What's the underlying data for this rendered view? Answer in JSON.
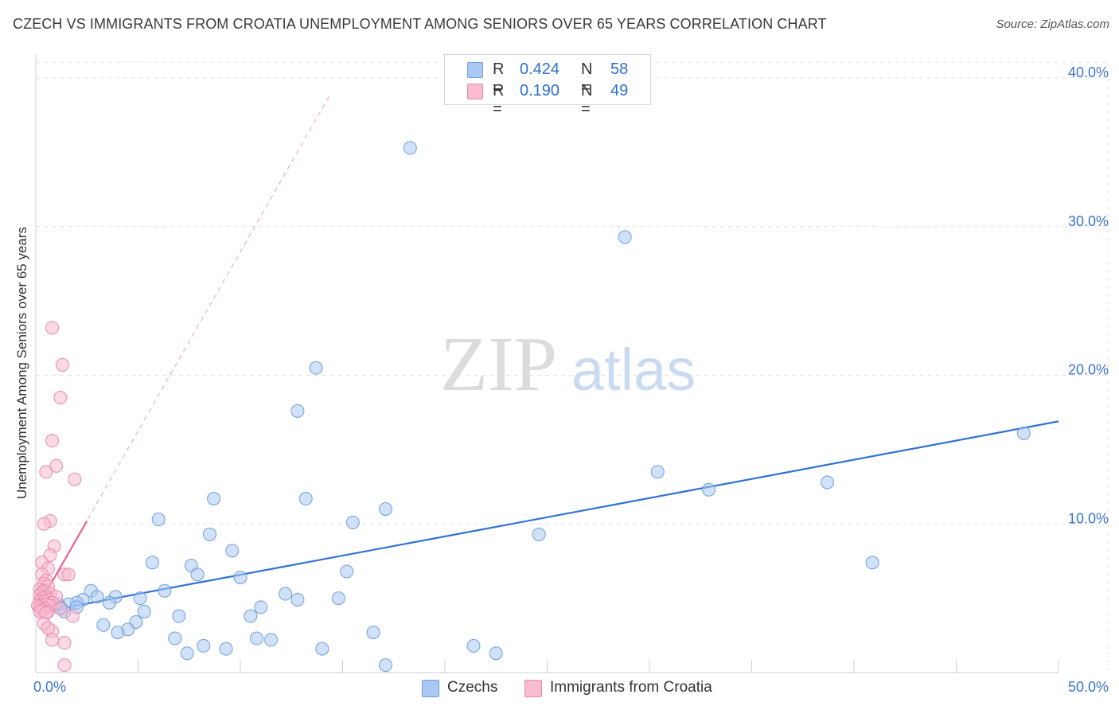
{
  "title": "CZECH VS IMMIGRANTS FROM CROATIA UNEMPLOYMENT AMONG SENIORS OVER 65 YEARS CORRELATION CHART",
  "source": "Source: ZipAtlas.com",
  "watermark": {
    "zip": "ZIP",
    "atlas": "atlas"
  },
  "legend_top": [
    {
      "r_label": "R =",
      "r_value": "0.424",
      "n_label": "N =",
      "n_value": "58",
      "color": "#aac9f2",
      "border": "#6f9fdd"
    },
    {
      "r_label": "R =",
      "r_value": "0.190",
      "n_label": "N =",
      "n_value": "49",
      "color": "#f7bcd0",
      "border": "#e88aab"
    }
  ],
  "legend_bottom": [
    {
      "label": "Czechs",
      "color": "#aac9f2",
      "border": "#6f9fdd"
    },
    {
      "label": "Immigrants from Croatia",
      "color": "#f7bcd0",
      "border": "#e88aab"
    }
  ],
  "chart_data": {
    "type": "scatter",
    "title": "CZECH VS IMMIGRANTS FROM CROATIA UNEMPLOYMENT AMONG SENIORS OVER 65 YEARS CORRELATION CHART",
    "xlabel": "",
    "ylabel": "Unemployment Among Seniors over 65 years",
    "xlim": [
      0,
      50
    ],
    "ylim": [
      0,
      40
    ],
    "x_tick_labels": [
      "0.0%",
      "50.0%"
    ],
    "y_ticks": [
      10,
      20,
      30,
      40
    ],
    "y_tick_labels": [
      "10.0%",
      "20.0%",
      "30.0%",
      "40.0%"
    ],
    "grid": true,
    "series": [
      {
        "name": "Czechs",
        "color": "#aac9f2",
        "border": "#6f9fdd",
        "trend": {
          "x": [
            0,
            50
          ],
          "y": [
            4.0,
            16.9
          ],
          "color": "#2f72d4",
          "dashed": false
        },
        "points": [
          [
            18.3,
            35.3
          ],
          [
            28.8,
            29.3
          ],
          [
            13.7,
            20.5
          ],
          [
            12.8,
            17.6
          ],
          [
            48.3,
            16.1
          ],
          [
            30.4,
            13.5
          ],
          [
            38.7,
            12.8
          ],
          [
            32.9,
            12.3
          ],
          [
            8.7,
            11.7
          ],
          [
            13.2,
            11.7
          ],
          [
            17.1,
            11.0
          ],
          [
            6.0,
            10.3
          ],
          [
            15.5,
            10.1
          ],
          [
            8.5,
            9.3
          ],
          [
            24.6,
            9.3
          ],
          [
            9.6,
            8.2
          ],
          [
            40.9,
            7.4
          ],
          [
            5.7,
            7.4
          ],
          [
            7.6,
            7.2
          ],
          [
            15.2,
            6.8
          ],
          [
            7.9,
            6.6
          ],
          [
            10.0,
            6.4
          ],
          [
            6.3,
            5.5
          ],
          [
            2.7,
            5.5
          ],
          [
            12.2,
            5.3
          ],
          [
            3.0,
            5.1
          ],
          [
            3.9,
            5.1
          ],
          [
            5.1,
            5.0
          ],
          [
            2.3,
            4.9
          ],
          [
            12.8,
            4.9
          ],
          [
            14.8,
            5.0
          ],
          [
            2.0,
            4.7
          ],
          [
            3.6,
            4.7
          ],
          [
            1.6,
            4.6
          ],
          [
            1.1,
            4.6
          ],
          [
            1.2,
            4.4
          ],
          [
            2.0,
            4.4
          ],
          [
            11.0,
            4.4
          ],
          [
            0.5,
            4.3
          ],
          [
            1.4,
            4.1
          ],
          [
            5.3,
            4.1
          ],
          [
            7.0,
            3.8
          ],
          [
            10.5,
            3.8
          ],
          [
            3.3,
            3.2
          ],
          [
            4.9,
            3.4
          ],
          [
            4.5,
            2.9
          ],
          [
            4.0,
            2.7
          ],
          [
            16.5,
            2.7
          ],
          [
            6.8,
            2.3
          ],
          [
            10.8,
            2.3
          ],
          [
            11.5,
            2.2
          ],
          [
            8.2,
            1.8
          ],
          [
            9.3,
            1.6
          ],
          [
            14.0,
            1.6
          ],
          [
            21.4,
            1.8
          ],
          [
            7.4,
            1.3
          ],
          [
            22.5,
            1.3
          ],
          [
            17.1,
            0.5
          ]
        ]
      },
      {
        "name": "Immigrants from Croatia",
        "color": "#f7bcd0",
        "border": "#e88aab",
        "trend": {
          "x": [
            0,
            2.5
          ],
          "y": [
            4.2,
            10.2
          ],
          "color": "#e8628f",
          "dashed": false
        },
        "trend_extended": {
          "x": [
            0,
            19
          ],
          "y": [
            4.2,
            50
          ],
          "color": "#eab1c4",
          "dashed": true
        },
        "points": [
          [
            0.8,
            23.2
          ],
          [
            1.3,
            20.7
          ],
          [
            1.2,
            18.5
          ],
          [
            0.8,
            15.6
          ],
          [
            1.0,
            13.9
          ],
          [
            0.5,
            13.5
          ],
          [
            1.9,
            13.0
          ],
          [
            0.7,
            10.2
          ],
          [
            0.4,
            10.0
          ],
          [
            0.9,
            8.5
          ],
          [
            0.7,
            7.9
          ],
          [
            0.3,
            7.4
          ],
          [
            0.6,
            7.0
          ],
          [
            1.4,
            6.6
          ],
          [
            1.6,
            6.6
          ],
          [
            0.3,
            6.6
          ],
          [
            0.5,
            6.2
          ],
          [
            0.4,
            6.0
          ],
          [
            0.6,
            5.8
          ],
          [
            0.2,
            5.6
          ],
          [
            0.4,
            5.5
          ],
          [
            0.3,
            5.4
          ],
          [
            0.7,
            5.3
          ],
          [
            0.2,
            5.2
          ],
          [
            0.5,
            5.1
          ],
          [
            1.0,
            5.1
          ],
          [
            0.3,
            5.0
          ],
          [
            0.6,
            4.9
          ],
          [
            0.2,
            4.8
          ],
          [
            0.4,
            4.8
          ],
          [
            0.8,
            4.7
          ],
          [
            0.3,
            4.6
          ],
          [
            0.5,
            4.6
          ],
          [
            0.1,
            4.5
          ],
          [
            0.7,
            4.5
          ],
          [
            0.2,
            4.4
          ],
          [
            0.4,
            4.3
          ],
          [
            1.2,
            4.3
          ],
          [
            0.3,
            4.2
          ],
          [
            0.6,
            4.1
          ],
          [
            0.2,
            4.1
          ],
          [
            0.5,
            4.0
          ],
          [
            1.8,
            3.8
          ],
          [
            0.4,
            3.3
          ],
          [
            0.8,
            2.8
          ],
          [
            0.8,
            2.2
          ],
          [
            1.4,
            2.0
          ],
          [
            1.4,
            0.5
          ],
          [
            0.6,
            3.0
          ]
        ]
      }
    ]
  }
}
